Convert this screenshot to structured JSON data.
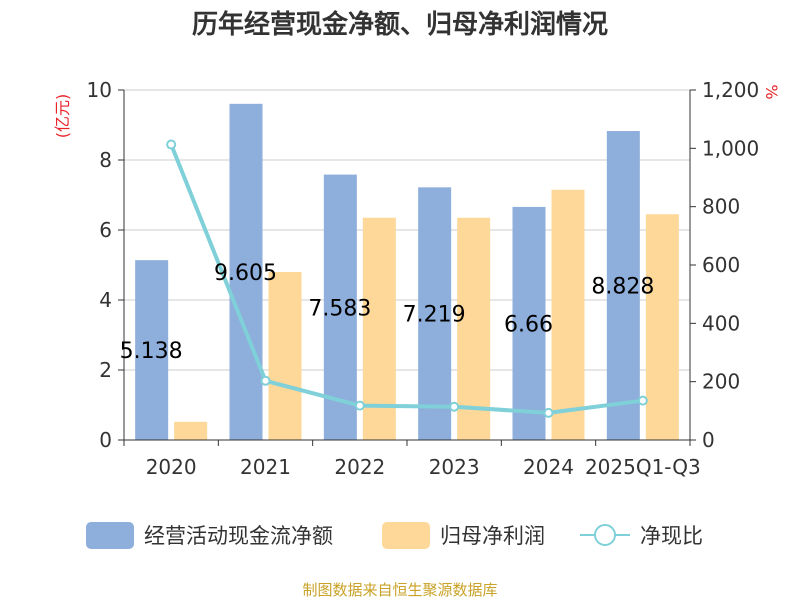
{
  "chart_data": {
    "type": "bar",
    "title": "历年经营现金净额、归母净利润情况",
    "categories": [
      "2020",
      "2021",
      "2022",
      "2023",
      "2024",
      "2025Q1-Q3"
    ],
    "series": [
      {
        "name": "经营活动现金流净额",
        "type": "bar",
        "axis": "left",
        "color": "#8eaedb",
        "values": [
          5.138,
          9.605,
          7.583,
          7.219,
          6.66,
          8.828
        ],
        "data_labels": [
          "5.138",
          "9.605",
          "7.583",
          "7.219",
          "6.66",
          "8.828"
        ]
      },
      {
        "name": "归母净利润",
        "type": "bar",
        "axis": "left",
        "color": "#fdd898",
        "values": [
          0.52,
          4.8,
          6.35,
          6.35,
          7.15,
          6.45
        ]
      },
      {
        "name": "净现比",
        "type": "line",
        "axis": "right",
        "color": "#7fd0d8",
        "values": [
          1013,
          203,
          118,
          114,
          93,
          135
        ]
      }
    ],
    "y_left": {
      "label": "(亿元)",
      "min": 0,
      "max": 10,
      "ticks": [
        0,
        2,
        4,
        6,
        8,
        10
      ],
      "tick_labels": [
        "0",
        "2",
        "4",
        "6",
        "8",
        "10"
      ]
    },
    "y_right": {
      "label": "%",
      "min": 0,
      "max": 1200,
      "ticks": [
        0,
        200,
        400,
        600,
        800,
        1000,
        1200
      ],
      "tick_labels": [
        "0",
        "200",
        "400",
        "600",
        "800",
        "1,000",
        "1,200"
      ]
    },
    "grid": true,
    "legend_position": "bottom"
  },
  "source": "制图数据来自恒生聚源数据库"
}
